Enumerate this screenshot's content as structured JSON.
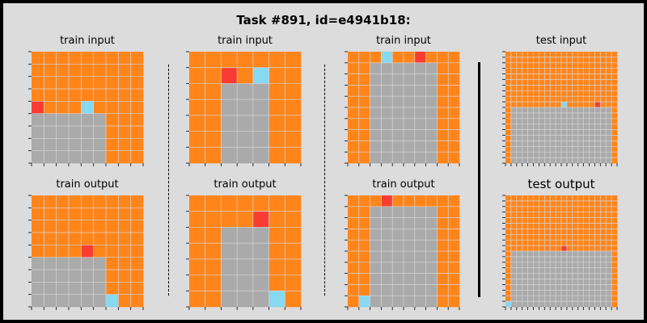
{
  "title": "Task #891, id=e4941b18:",
  "palette": {
    "0": "#000000",
    "1": "#1e93ff",
    "2": "#f93c31",
    "3": "#4fcc30",
    "4": "#ffdc00",
    "5": "#aaaaaa",
    "6": "#e53aa3",
    "7": "#ff851b",
    "8": "#87d8f1",
    "9": "#921231"
  },
  "grid_line_color": "#d6d6d6",
  "panels": [
    {
      "key": "p0",
      "label": "train input",
      "rows": 9,
      "cols": 9,
      "bg": 7,
      "rects": [
        [
          5,
          0,
          4,
          6,
          5
        ]
      ],
      "cells": [
        [
          4,
          0,
          2
        ],
        [
          4,
          4,
          8
        ]
      ]
    },
    {
      "key": "p1",
      "label": "train output",
      "rows": 9,
      "cols": 9,
      "bg": 7,
      "rects": [
        [
          5,
          0,
          4,
          6,
          5
        ]
      ],
      "cells": [
        [
          4,
          4,
          2
        ],
        [
          8,
          6,
          8
        ]
      ]
    },
    {
      "key": "p2",
      "label": "train input",
      "rows": 7,
      "cols": 7,
      "bg": 7,
      "rects": [
        [
          2,
          2,
          5,
          3,
          5
        ]
      ],
      "cells": [
        [
          1,
          2,
          2
        ],
        [
          1,
          4,
          8
        ]
      ]
    },
    {
      "key": "p3",
      "label": "train output",
      "rows": 7,
      "cols": 7,
      "bg": 7,
      "rects": [
        [
          2,
          2,
          5,
          3,
          5
        ]
      ],
      "cells": [
        [
          1,
          4,
          2
        ],
        [
          6,
          5,
          8
        ]
      ]
    },
    {
      "key": "p4",
      "label": "train input",
      "rows": 10,
      "cols": 10,
      "bg": 7,
      "rects": [
        [
          1,
          2,
          9,
          6,
          5
        ]
      ],
      "cells": [
        [
          0,
          3,
          8
        ],
        [
          0,
          6,
          2
        ]
      ]
    },
    {
      "key": "p5",
      "label": "train output",
      "rows": 10,
      "cols": 10,
      "bg": 7,
      "rects": [
        [
          1,
          2,
          9,
          6,
          5
        ]
      ],
      "cells": [
        [
          0,
          3,
          2
        ],
        [
          9,
          1,
          8
        ]
      ]
    },
    {
      "key": "p6",
      "label": "test input",
      "rows": 20,
      "cols": 20,
      "bg": 7,
      "rects": [
        [
          10,
          1,
          10,
          18,
          5
        ]
      ],
      "cells": [
        [
          9,
          10,
          8
        ],
        [
          9,
          16,
          2
        ]
      ]
    },
    {
      "key": "p7",
      "label": "test output",
      "rows": 20,
      "cols": 20,
      "bg": 7,
      "rects": [
        [
          10,
          1,
          10,
          18,
          5
        ]
      ],
      "cells": [
        [
          9,
          10,
          2
        ],
        [
          19,
          0,
          8
        ]
      ]
    }
  ]
}
